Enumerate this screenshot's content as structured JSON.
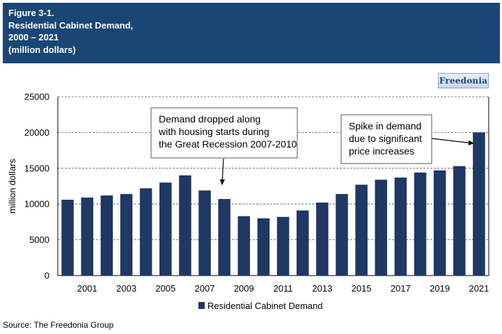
{
  "header": {
    "line1": "Figure 3-1.",
    "line2": "Residential Cabinet Demand,",
    "line3": "2000 – 2021",
    "line4": "(million dollars)"
  },
  "logo": {
    "text": "Freedonia"
  },
  "source": "Source: The Freedonia Group",
  "colors": {
    "header_bg": "#1a4676",
    "bar": "#1f3864"
  },
  "chart_data": {
    "type": "bar",
    "title": "",
    "xlabel": "",
    "ylabel": "million dollars",
    "categories": [
      "2000",
      "2001",
      "2002",
      "2003",
      "2004",
      "2005",
      "2006",
      "2007",
      "2008",
      "2009",
      "2010",
      "2011",
      "2012",
      "2013",
      "2014",
      "2015",
      "2016",
      "2017",
      "2018",
      "2019",
      "2020",
      "2021"
    ],
    "tick_labels": [
      "2001",
      "2003",
      "2005",
      "2007",
      "2009",
      "2011",
      "2013",
      "2015",
      "2017",
      "2019",
      "2021"
    ],
    "y_ticks": [
      0,
      5000,
      10000,
      15000,
      20000,
      25000
    ],
    "series": [
      {
        "name": "Residential Cabinet Demand",
        "values": [
          10600,
          10900,
          11200,
          11400,
          12200,
          13000,
          14000,
          11900,
          10700,
          8300,
          8000,
          8200,
          9100,
          10200,
          11400,
          12700,
          13400,
          13700,
          14400,
          14700,
          15300,
          20000
        ]
      }
    ],
    "ylim": [
      0,
      25000
    ],
    "grid": true,
    "legend": "bottom",
    "annotations": [
      {
        "text_lines": [
          "Demand dropped along",
          "with housing starts during",
          "the Great Recession 2007-2010"
        ],
        "target_category": "2008",
        "target_value": 13200
      },
      {
        "text_lines": [
          "Spike in demand",
          "due to significant",
          "price increases"
        ],
        "target_category": "2021",
        "target_value": 19900
      }
    ]
  }
}
